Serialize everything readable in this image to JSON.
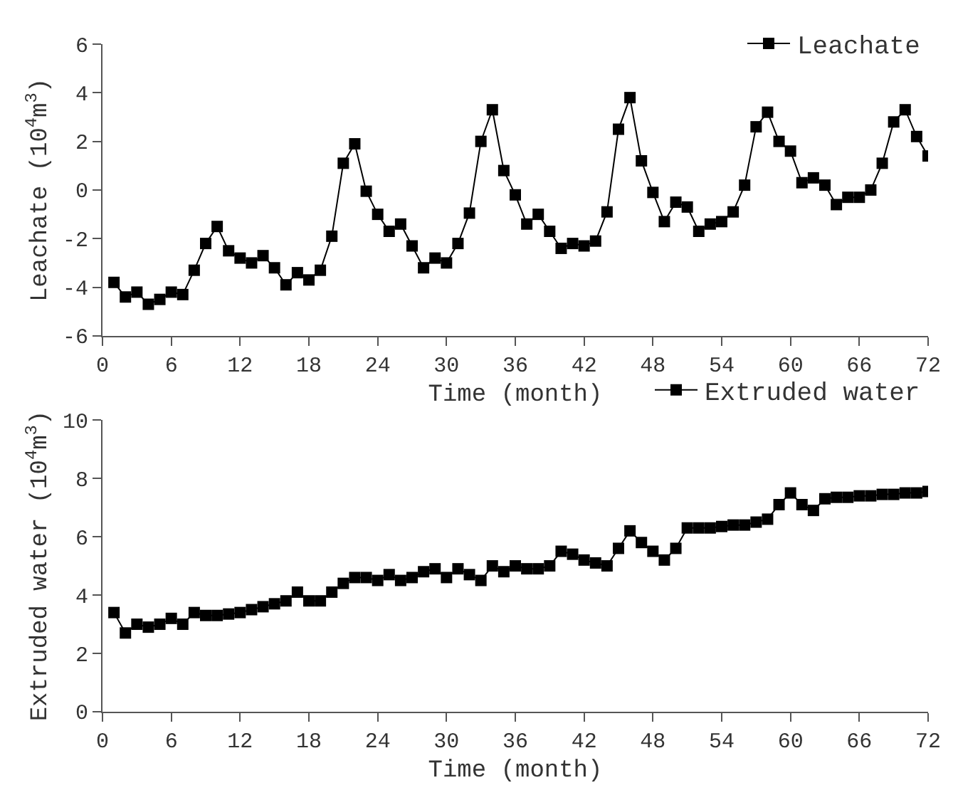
{
  "chart_data": [
    {
      "type": "line",
      "xlabel": "Time (month)",
      "ylabel": "Leachate (10$^{4}$m$^{3}$)",
      "x": [
        1,
        2,
        3,
        4,
        5,
        6,
        7,
        8,
        9,
        10,
        11,
        12,
        13,
        14,
        15,
        16,
        17,
        18,
        19,
        20,
        21,
        22,
        23,
        24,
        25,
        26,
        27,
        28,
        29,
        30,
        31,
        32,
        33,
        34,
        35,
        36,
        37,
        38,
        39,
        40,
        41,
        42,
        43,
        44,
        45,
        46,
        47,
        48,
        49,
        50,
        51,
        52,
        53,
        54,
        55,
        56,
        57,
        58,
        59,
        60,
        61,
        62,
        63,
        64,
        65,
        66,
        67,
        68,
        69,
        70,
        71,
        72
      ],
      "series": [
        {
          "name": "Leachate",
          "color": "#000000",
          "values": [
            -3.8,
            -4.4,
            -4.2,
            -4.7,
            -4.5,
            -4.2,
            -4.3,
            -3.3,
            -2.2,
            -1.5,
            -2.5,
            -2.8,
            -3.0,
            -2.7,
            -3.2,
            -3.9,
            -3.4,
            -3.7,
            -3.3,
            -1.9,
            1.1,
            1.9,
            -0.05,
            -1.0,
            -1.7,
            -1.4,
            -2.3,
            -3.2,
            -2.8,
            -3.0,
            -2.2,
            -0.95,
            2.0,
            3.3,
            0.8,
            -0.2,
            -1.4,
            -1.0,
            -1.7,
            -2.4,
            -2.2,
            -2.3,
            -2.1,
            -0.9,
            2.5,
            3.8,
            1.2,
            -0.1,
            -1.3,
            -0.5,
            -0.7,
            -1.7,
            -1.4,
            -1.3,
            -0.9,
            0.2,
            2.6,
            3.2,
            2.0,
            1.6,
            0.3,
            0.5,
            0.2,
            -0.6,
            -0.3,
            -0.3,
            0.0,
            1.1,
            2.8,
            3.3,
            2.2,
            1.4
          ]
        }
      ],
      "xlim": [
        0,
        72
      ],
      "xticks": [
        0,
        6,
        12,
        18,
        24,
        30,
        36,
        42,
        48,
        54,
        60,
        66,
        72
      ],
      "ylim": [
        -6,
        6
      ],
      "yticks": [
        -6,
        -4,
        -2,
        0,
        2,
        4,
        6
      ],
      "marker": "square",
      "line_style": "solid",
      "legend": "top right"
    },
    {
      "type": "line",
      "xlabel": "Time (month)",
      "ylabel": "Extruded water (10$^{4}$m$^{3}$)",
      "x": [
        1,
        2,
        3,
        4,
        5,
        6,
        7,
        8,
        9,
        10,
        11,
        12,
        13,
        14,
        15,
        16,
        17,
        18,
        19,
        20,
        21,
        22,
        23,
        24,
        25,
        26,
        27,
        28,
        29,
        30,
        31,
        32,
        33,
        34,
        35,
        36,
        37,
        38,
        39,
        40,
        41,
        42,
        43,
        44,
        45,
        46,
        47,
        48,
        49,
        50,
        51,
        52,
        53,
        54,
        55,
        56,
        57,
        58,
        59,
        60,
        61,
        62,
        63,
        64,
        65,
        66,
        67,
        68,
        69,
        70,
        71,
        72
      ],
      "series": [
        {
          "name": "Extruded water",
          "color": "#000000",
          "values": [
            3.4,
            2.7,
            3.0,
            2.9,
            3.0,
            3.2,
            3.0,
            3.4,
            3.3,
            3.3,
            3.35,
            3.4,
            3.5,
            3.6,
            3.7,
            3.8,
            4.1,
            3.8,
            3.8,
            4.1,
            4.4,
            4.6,
            4.6,
            4.5,
            4.7,
            4.5,
            4.6,
            4.8,
            4.9,
            4.6,
            4.9,
            4.7,
            4.5,
            5.0,
            4.8,
            5.0,
            4.9,
            4.9,
            5.0,
            5.5,
            5.4,
            5.2,
            5.1,
            5.0,
            5.6,
            6.2,
            5.8,
            5.5,
            5.2,
            5.6,
            6.3,
            6.3,
            6.3,
            6.35,
            6.4,
            6.4,
            6.5,
            6.6,
            7.1,
            7.5,
            7.1,
            6.9,
            7.3,
            7.35,
            7.35,
            7.4,
            7.4,
            7.45,
            7.45,
            7.5,
            7.5,
            7.55
          ]
        }
      ],
      "xlim": [
        0,
        72
      ],
      "xticks": [
        0,
        6,
        12,
        18,
        24,
        30,
        36,
        42,
        48,
        54,
        60,
        66,
        72
      ],
      "ylim": [
        0,
        10
      ],
      "yticks": [
        0,
        2,
        4,
        6,
        8,
        10
      ],
      "marker": "square",
      "line_style": "solid",
      "legend": "top right"
    }
  ]
}
